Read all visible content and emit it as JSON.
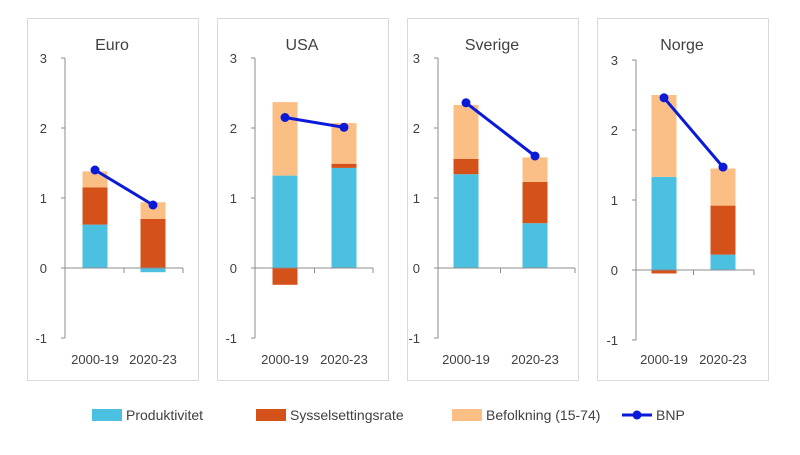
{
  "chart_data": [
    {
      "type": "bar",
      "stacked": true,
      "title": "Euro",
      "categories": [
        "2000-19",
        "2020-23"
      ],
      "ylim": [
        -1,
        3
      ],
      "yticks": [
        -1,
        0,
        1,
        2,
        3
      ],
      "series": [
        {
          "name": "Produktivitet",
          "values": [
            0.62,
            -0.06
          ]
        },
        {
          "name": "Sysselsettingsrate",
          "values": [
            0.53,
            0.7
          ]
        },
        {
          "name": "Befolkning (15-74)",
          "values": [
            0.23,
            0.24
          ]
        }
      ],
      "line": {
        "name": "BNP",
        "values": [
          1.4,
          0.9
        ]
      }
    },
    {
      "type": "bar",
      "stacked": true,
      "title": "USA",
      "categories": [
        "2000-19",
        "2020-23"
      ],
      "ylim": [
        -1,
        3
      ],
      "yticks": [
        -1,
        0,
        1,
        2,
        3
      ],
      "series": [
        {
          "name": "Produktivitet",
          "values": [
            1.32,
            1.43
          ]
        },
        {
          "name": "Sysselsettingsrate",
          "values": [
            -0.24,
            0.06
          ]
        },
        {
          "name": "Befolkning (15-74)",
          "values": [
            1.05,
            0.58
          ]
        }
      ],
      "line": {
        "name": "BNP",
        "values": [
          2.15,
          2.01
        ]
      }
    },
    {
      "type": "bar",
      "stacked": true,
      "title": "Sverige",
      "categories": [
        "2000-19",
        "2020-23"
      ],
      "ylim": [
        -1,
        3
      ],
      "yticks": [
        -1,
        0,
        1,
        2,
        3
      ],
      "series": [
        {
          "name": "Produktivitet",
          "values": [
            1.34,
            0.64
          ]
        },
        {
          "name": "Sysselsettingsrate",
          "values": [
            0.22,
            0.59
          ]
        },
        {
          "name": "Befolkning (15-74)",
          "values": [
            0.77,
            0.35
          ]
        }
      ],
      "line": {
        "name": "BNP",
        "values": [
          2.36,
          1.6
        ]
      }
    },
    {
      "type": "bar",
      "stacked": true,
      "title": "Norge",
      "categories": [
        "2000-19",
        "2020-23"
      ],
      "ylim": [
        -1,
        3
      ],
      "yticks": [
        -1,
        0,
        1,
        2,
        3
      ],
      "series": [
        {
          "name": "Produktivitet",
          "values": [
            1.33,
            0.22
          ]
        },
        {
          "name": "Sysselsettingsrate",
          "values": [
            -0.05,
            0.7
          ]
        },
        {
          "name": "Befolkning (15-74)",
          "values": [
            1.17,
            0.53
          ]
        }
      ],
      "line": {
        "name": "BNP",
        "values": [
          2.46,
          1.47
        ]
      }
    }
  ],
  "legend": [
    {
      "label": "Produktivitet",
      "kind": "bar",
      "color": "#4bc0e0"
    },
    {
      "label": "Sysselsettingsrate",
      "kind": "bar",
      "color": "#d4521a"
    },
    {
      "label": "Befolkning (15-74)",
      "kind": "bar",
      "color": "#fbbf85"
    },
    {
      "label": "BNP",
      "kind": "line",
      "color": "#0a1ad8"
    }
  ],
  "colors": {
    "Produktivitet": "#4bc0e0",
    "Sysselsettingsrate": "#d4521a",
    "Befolkning (15-74)": "#fbbf85",
    "BNP": "#0a1ad8"
  }
}
